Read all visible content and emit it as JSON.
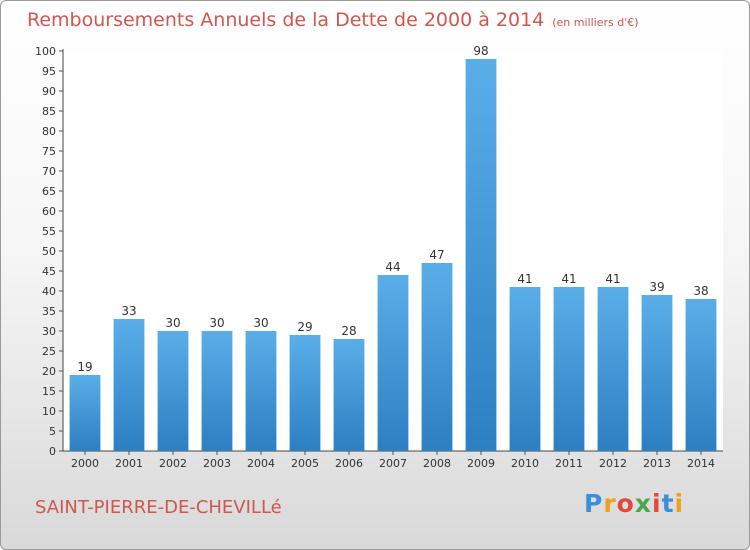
{
  "header": {
    "title": "Remboursements Annuels de la Dette de 2000 à 2014",
    "unit": "(en milliers d'€)"
  },
  "footer": {
    "commune": "SAINT-PIERRE-DE-CHEVILLé",
    "logo": [
      "P",
      "r",
      "o",
      "x",
      "i",
      "t",
      "i"
    ],
    "logo_colors": [
      "#3a8fd6",
      "#f0a020",
      "#e04a3a",
      "#4aa84a",
      "#e04a3a",
      "#3a8fd6",
      "#f0a020"
    ]
  },
  "chart_data": {
    "type": "bar",
    "categories": [
      "2000",
      "2001",
      "2002",
      "2003",
      "2004",
      "2005",
      "2006",
      "2007",
      "2008",
      "2009",
      "2010",
      "2011",
      "2012",
      "2013",
      "2014"
    ],
    "values": [
      19,
      33,
      30,
      30,
      30,
      29,
      28,
      44,
      47,
      98,
      41,
      41,
      41,
      39,
      38
    ],
    "ylim": [
      0,
      100
    ],
    "yticks": [
      0,
      5,
      10,
      15,
      20,
      25,
      30,
      35,
      40,
      45,
      50,
      55,
      60,
      65,
      70,
      75,
      80,
      85,
      90,
      95,
      100
    ],
    "grid": false,
    "bar_color_top": "#5aaee8",
    "bar_color_bottom": "#2c7fc2"
  }
}
